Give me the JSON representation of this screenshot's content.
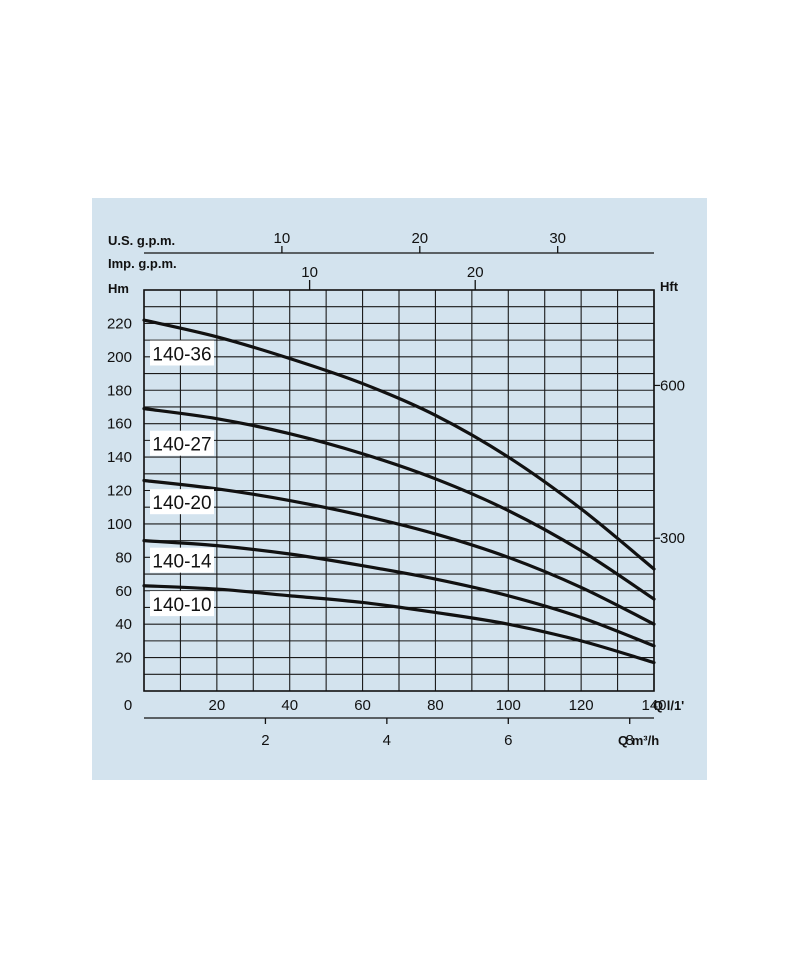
{
  "chart_data": {
    "type": "line",
    "title": "",
    "x_axis_primary": {
      "unit": "Q l/1'",
      "range": [
        0,
        140
      ],
      "ticks": [
        0,
        20,
        40,
        60,
        80,
        100,
        120,
        140
      ],
      "tick_labels": [
        "0",
        "20",
        "40",
        "60",
        "80",
        "100",
        "120",
        "140"
      ]
    },
    "x_axis_secondary": {
      "unit": "Q m³/h",
      "ticks": [
        2,
        4,
        6,
        8
      ],
      "tick_labels": [
        "2",
        "4",
        "6",
        "8"
      ]
    },
    "top_axis_us": {
      "unit": "U.S. g.p.m.",
      "ticks": [
        10,
        20,
        30
      ],
      "tick_labels": [
        "10",
        "20",
        "30"
      ]
    },
    "top_axis_imp": {
      "unit": "Imp. g.p.m.",
      "ticks": [
        10,
        20
      ],
      "tick_labels": [
        "10",
        "20"
      ]
    },
    "y_axis_left": {
      "unit": "Hm",
      "range": [
        0,
        240
      ],
      "ticks": [
        20,
        40,
        60,
        80,
        100,
        120,
        140,
        160,
        180,
        200,
        220
      ],
      "tick_labels": [
        "20",
        "40",
        "60",
        "80",
        "100",
        "120",
        "140",
        "160",
        "180",
        "200",
        "220"
      ]
    },
    "y_axis_right": {
      "unit": "Hft",
      "ticks": [
        300,
        600
      ],
      "tick_labels": [
        "300",
        "600"
      ]
    },
    "grid": true,
    "series": [
      {
        "name": "140-36",
        "label_y": 202,
        "x": [
          0,
          20,
          40,
          60,
          80,
          100,
          120,
          140
        ],
        "values": [
          222,
          212,
          199,
          184,
          165,
          140,
          109,
          73
        ]
      },
      {
        "name": "140-27",
        "label_y": 148,
        "x": [
          0,
          20,
          40,
          60,
          80,
          100,
          120,
          140
        ],
        "values": [
          169,
          163,
          154,
          142,
          127,
          108,
          84,
          55
        ]
      },
      {
        "name": "140-20",
        "label_y": 113,
        "x": [
          0,
          20,
          40,
          60,
          80,
          100,
          120,
          140
        ],
        "values": [
          126,
          121,
          114,
          105,
          94,
          80,
          62,
          40
        ]
      },
      {
        "name": "140-14",
        "label_y": 78,
        "x": [
          0,
          20,
          40,
          60,
          80,
          100,
          120,
          140
        ],
        "values": [
          90,
          87,
          82,
          75,
          67,
          57,
          44,
          27
        ]
      },
      {
        "name": "140-10",
        "label_y": 52,
        "x": [
          0,
          20,
          40,
          60,
          80,
          100,
          120,
          140
        ],
        "values": [
          63,
          61,
          57,
          53,
          47,
          40,
          30,
          17
        ]
      }
    ]
  }
}
